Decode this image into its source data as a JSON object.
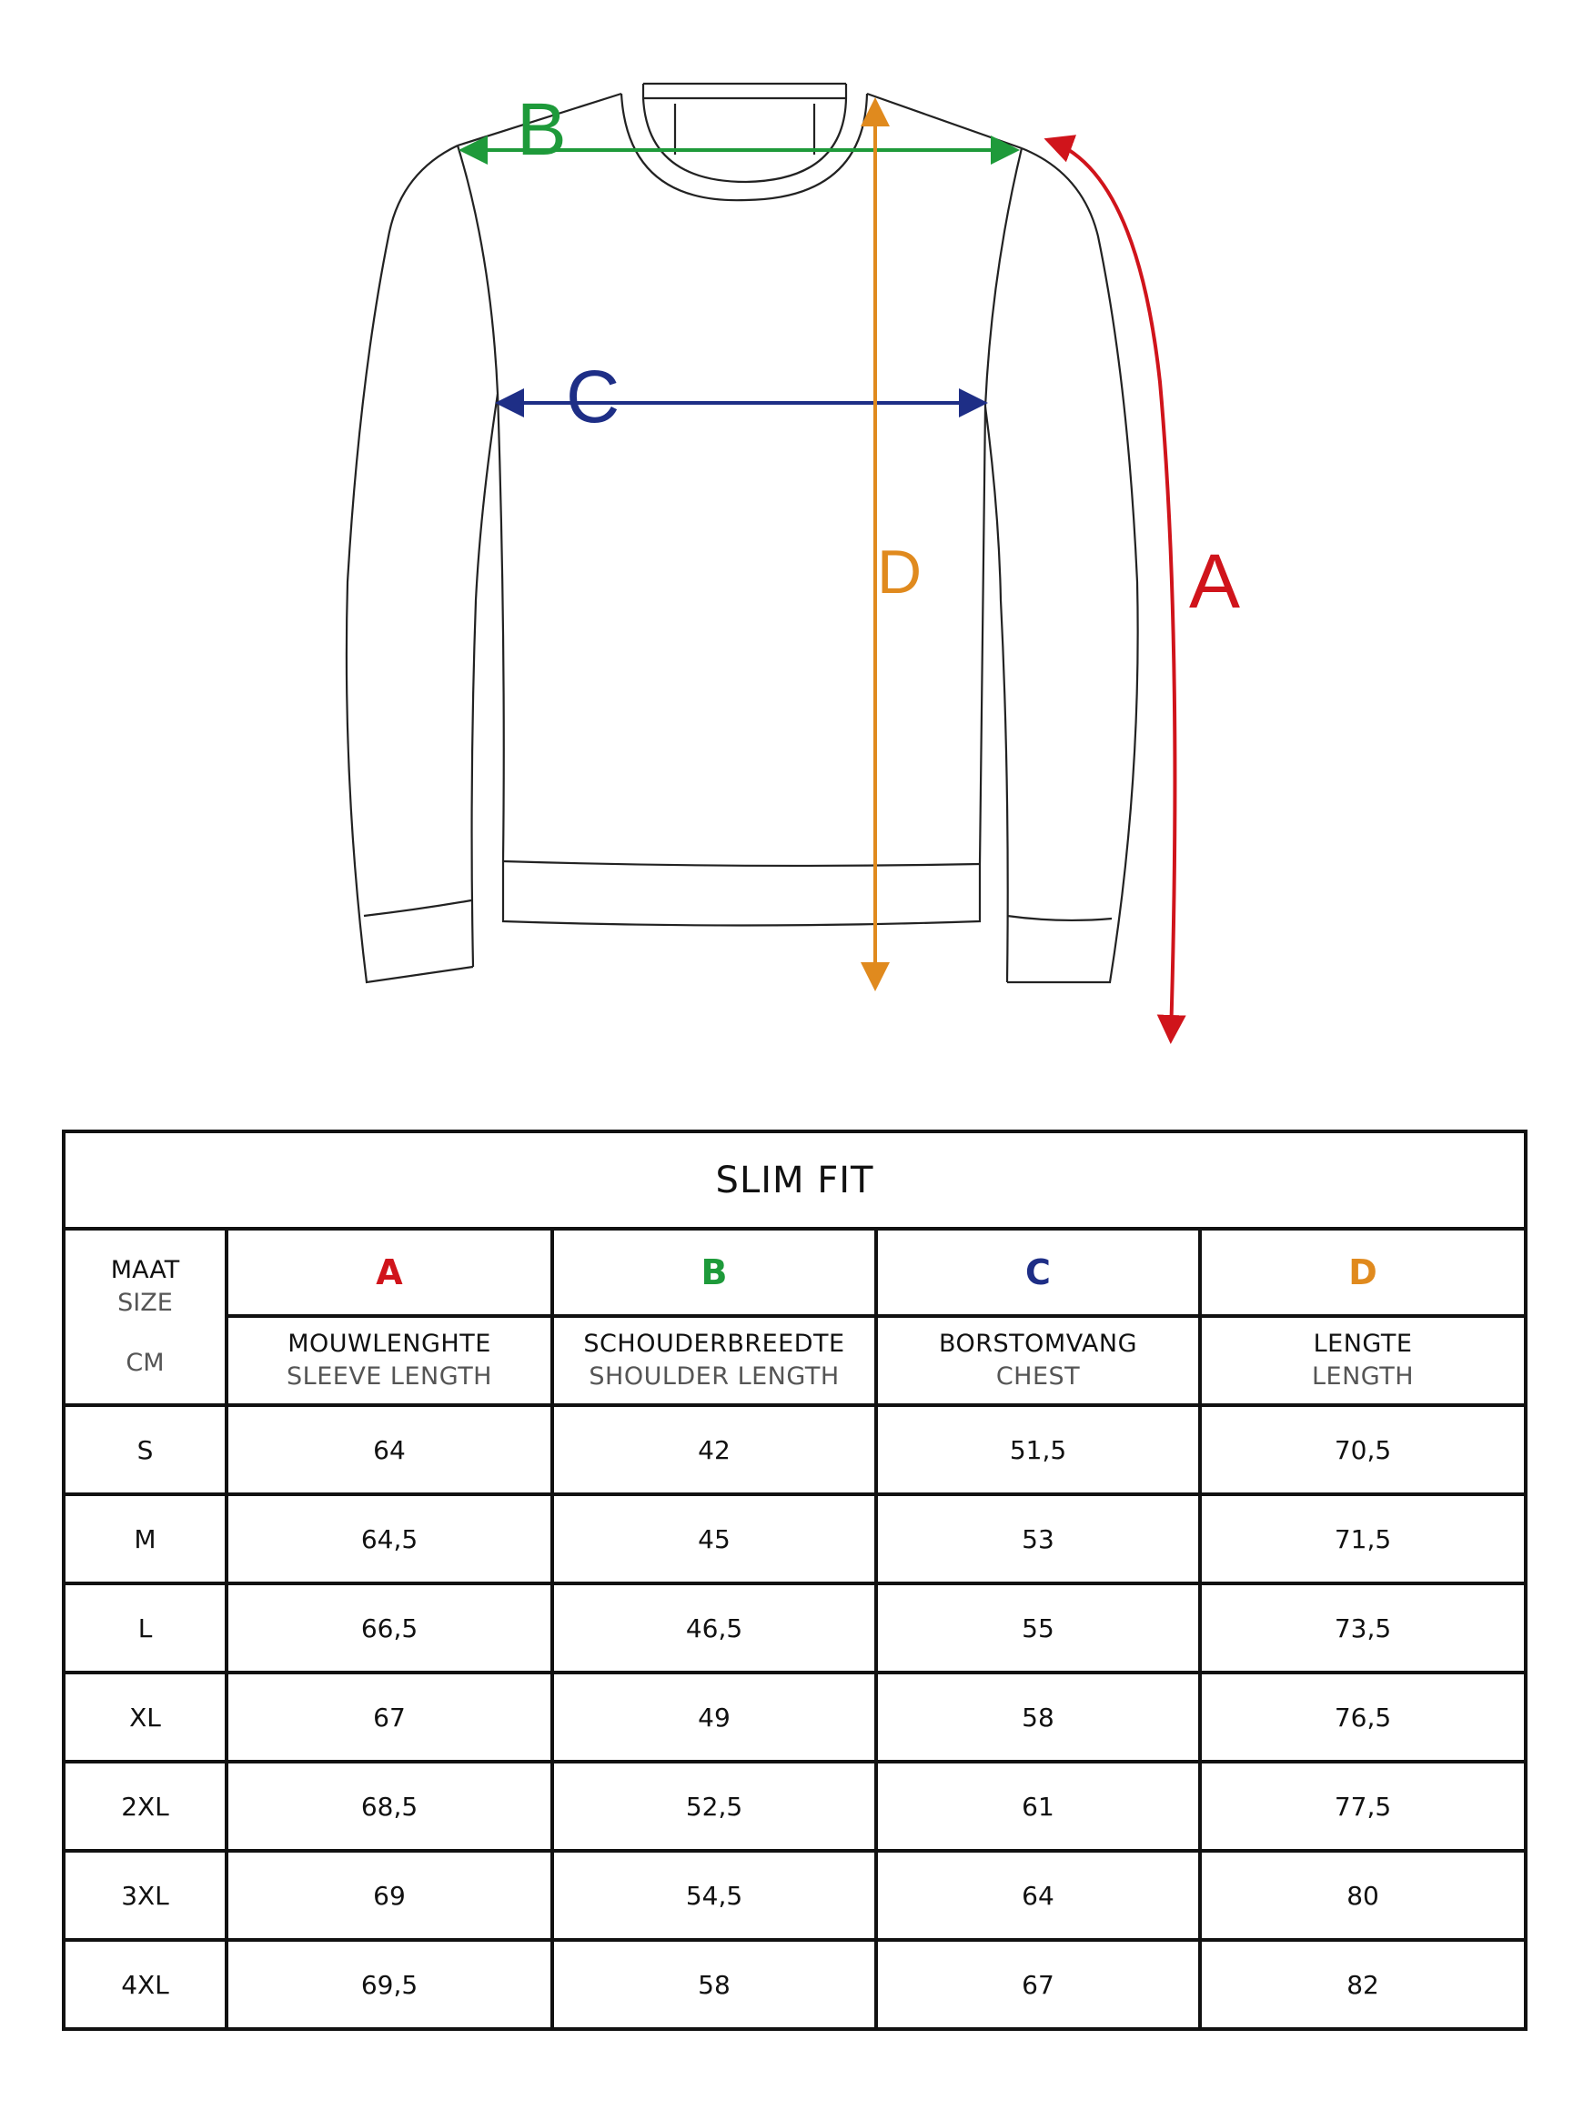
{
  "diagram": {
    "labels": {
      "A": "A",
      "B": "B",
      "C": "C",
      "D": "D"
    },
    "colors": {
      "A": "#d0141b",
      "B": "#1e9a3a",
      "C": "#1e2e86",
      "D": "#e08a1e"
    }
  },
  "table": {
    "title": "SLIM FIT",
    "size_header": {
      "line1": "MAAT",
      "line2": "SIZE",
      "unit": "CM"
    },
    "columns": [
      {
        "letter": "A",
        "nl": "MOUWLENGHTE",
        "en": "SLEEVE LENGTH"
      },
      {
        "letter": "B",
        "nl": "SCHOUDERBREEDTE",
        "en": "SHOULDER LENGTH"
      },
      {
        "letter": "C",
        "nl": "BORSTOMVANG",
        "en": "CHEST"
      },
      {
        "letter": "D",
        "nl": "LENGTE",
        "en": "LENGTH"
      }
    ],
    "rows": [
      {
        "size": "S",
        "values": [
          "64",
          "42",
          "51,5",
          "70,5"
        ]
      },
      {
        "size": "M",
        "values": [
          "64,5",
          "45",
          "53",
          "71,5"
        ]
      },
      {
        "size": "L",
        "values": [
          "66,5",
          "46,5",
          "55",
          "73,5"
        ]
      },
      {
        "size": "XL",
        "values": [
          "67",
          "49",
          "58",
          "76,5"
        ]
      },
      {
        "size": "2XL",
        "values": [
          "68,5",
          "52,5",
          "61",
          "77,5"
        ]
      },
      {
        "size": "3XL",
        "values": [
          "69",
          "54,5",
          "64",
          "80"
        ]
      },
      {
        "size": "4XL",
        "values": [
          "69,5",
          "58",
          "67",
          "82"
        ]
      }
    ]
  }
}
